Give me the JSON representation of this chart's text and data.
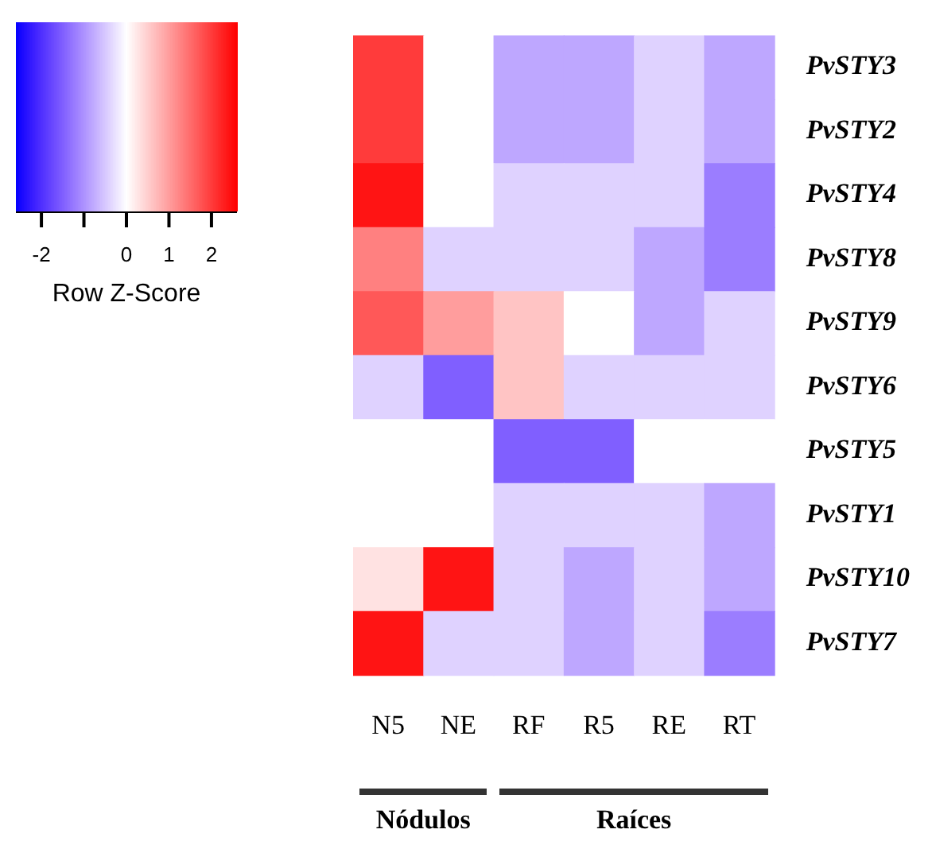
{
  "chart_data": {
    "type": "heatmap",
    "categories": [
      "N5",
      "NE",
      "RF",
      "R5",
      "RE",
      "RT"
    ],
    "y_categories": [
      "PvSTY3",
      "PvSTY2",
      "PvSTY4",
      "PvSTY8",
      "PvSTY9",
      "PvSTY6",
      "PvSTY5",
      "PvSTY1",
      "PvSTY10",
      "PvSTY7"
    ],
    "cells": [
      [
        2.0,
        0,
        -0.8,
        -0.8,
        -0.4,
        -0.8
      ],
      [
        2.0,
        0,
        -0.8,
        -0.8,
        -0.4,
        -0.8
      ],
      [
        2.4,
        0,
        -0.4,
        -0.4,
        -0.4,
        -1.2
      ],
      [
        1.3,
        -0.4,
        -0.4,
        -0.4,
        -0.8,
        -1.2
      ],
      [
        1.7,
        1.0,
        0.6,
        0,
        -0.8,
        -0.4
      ],
      [
        -0.4,
        -1.5,
        0.6,
        -0.4,
        -0.4,
        -0.4
      ],
      [
        0,
        0,
        -1.5,
        -1.5,
        0,
        0
      ],
      [
        0,
        0,
        -0.4,
        -0.4,
        -0.4,
        -0.8
      ],
      [
        0.3,
        2.4,
        -0.4,
        -0.8,
        -0.4,
        -0.8
      ],
      [
        2.4,
        -0.4,
        -0.4,
        -0.8,
        -0.4,
        -1.2
      ]
    ],
    "clim": [
      -2.6,
      2.6
    ],
    "cticks": [
      -2,
      {
        "value": -1,
        "label": null
      },
      0,
      1,
      2
    ],
    "clabel": "Row Z-Score",
    "annotations": [
      "Nódulos",
      "Raíces"
    ]
  }
}
